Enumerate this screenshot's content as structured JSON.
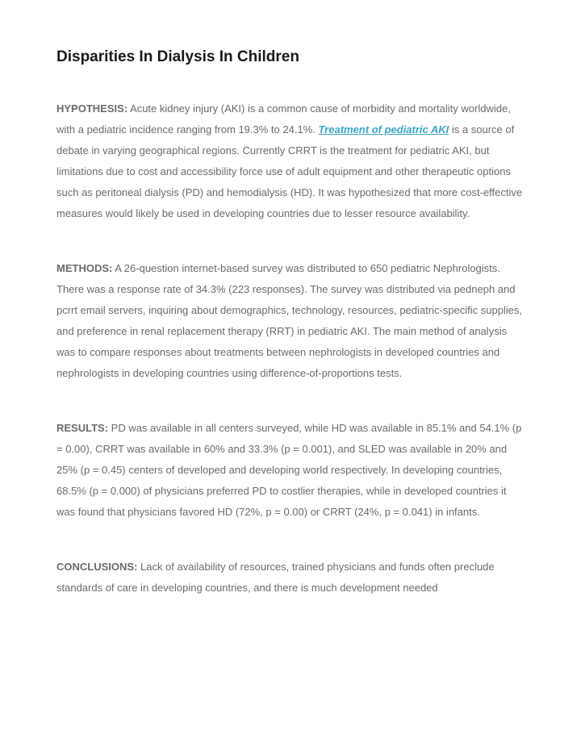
{
  "title": "Disparities In Dialysis In Children",
  "sections": {
    "hypothesis": {
      "label": "HYPOTHESIS:",
      "pre_link": " Acute kidney injury (AKI) is a common cause of morbidity and mortality worldwide, with a pediatric incidence ranging from 19.3% to 24.1%. ",
      "link_text": "Treatment of pediatric AKI",
      "post_link": " is a source of debate in varying geographical regions. Currently CRRT is the treatment for pediatric AKI, but limitations due to cost and accessibility force use of adult equipment and other therapeutic options such as peritoneal dialysis (PD) and hemodialysis (HD). It was hypothesized that more cost-effective measures would likely be used in developing countries due to lesser resource availability."
    },
    "methods": {
      "label": "METHODS:",
      "body": " A 26-question internet-based survey was distributed to 650 pediatric Nephrologists. There was a response rate of 34.3% (223 responses). The survey was distributed via pedneph and pcrrt email servers, inquiring about demographics, technology, resources, pediatric-specific supplies, and preference in renal replacement therapy (RRT) in pediatric AKI. The main method of analysis was to compare responses about treatments between nephrologists in developed countries and nephrologists in developing countries using difference-of-proportions tests."
    },
    "results": {
      "label": "RESULTS:",
      "body": " PD was available in all centers surveyed, while HD was available in 85.1% and 54.1% (p = 0.00), CRRT was available in 60% and 33.3% (p = 0.001), and SLED was available in 20% and 25% (p = 0.45) centers of developed and developing world respectively. In developing countries, 68.5% (p = 0.000) of physicians preferred PD to costlier therapies, while in developed countries it was found that physicians favored HD (72%, p = 0.00) or CRRT (24%, p = 0.041) in infants."
    },
    "conclusions": {
      "label": "CONCLUSIONS:",
      "body": " Lack of availability of resources, trained physicians and funds often preclude standards of care in developing countries, and there is much development needed"
    }
  }
}
